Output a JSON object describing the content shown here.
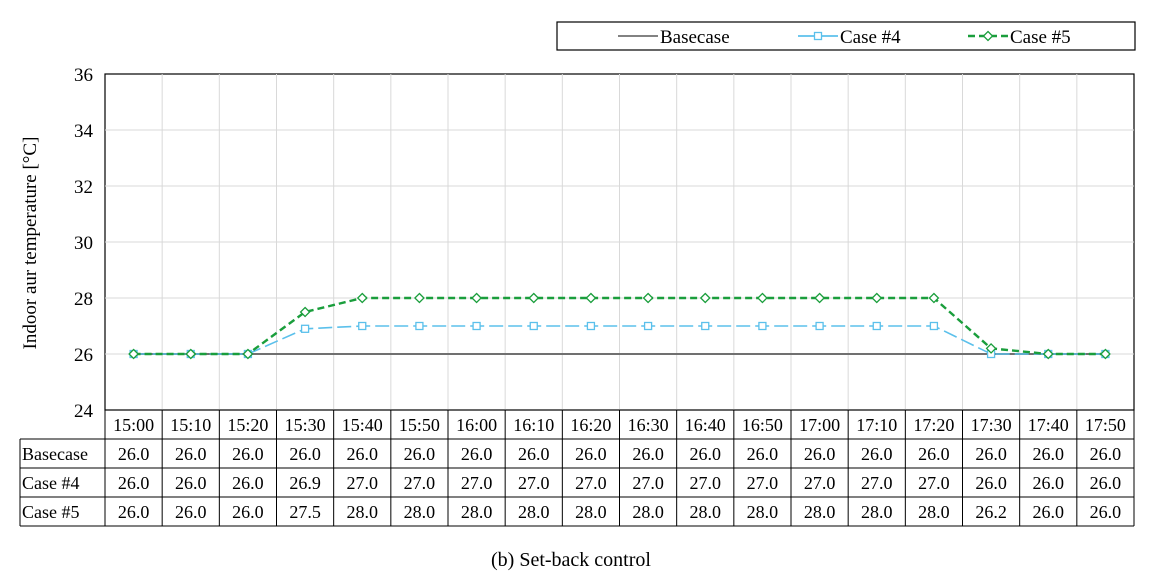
{
  "chart_data": {
    "type": "line",
    "caption": "(b)  Set-back  control",
    "ylabel": "Indoor aur temperature [°C]",
    "xlabel": "",
    "ylim": [
      24,
      36
    ],
    "yticks": [
      24,
      26,
      28,
      30,
      32,
      34,
      36
    ],
    "categories": [
      "15:00",
      "15:10",
      "15:20",
      "15:30",
      "15:40",
      "15:50",
      "16:00",
      "16:10",
      "16:20",
      "16:30",
      "16:40",
      "16:50",
      "17:00",
      "17:10",
      "17:20",
      "17:30",
      "17:40",
      "17:50"
    ],
    "grid": true,
    "legend_position": "top-right",
    "series": [
      {
        "name": "Basecase",
        "color": "#707070",
        "marker": "none",
        "dash": "solid",
        "values": [
          26.0,
          26.0,
          26.0,
          26.0,
          26.0,
          26.0,
          26.0,
          26.0,
          26.0,
          26.0,
          26.0,
          26.0,
          26.0,
          26.0,
          26.0,
          26.0,
          26.0,
          26.0
        ],
        "display": [
          "26.0",
          "26.0",
          "26.0",
          "26.0",
          "26.0",
          "26.0",
          "26.0",
          "26.0",
          "26.0",
          "26.0",
          "26.0",
          "26.0",
          "26.0",
          "26.0",
          "26.0",
          "26.0",
          "26.0",
          "26.0"
        ]
      },
      {
        "name": "Case #4",
        "color": "#5bc0eb",
        "marker": "square",
        "dash": "long-dash",
        "values": [
          26.0,
          26.0,
          26.0,
          26.9,
          27.0,
          27.0,
          27.0,
          27.0,
          27.0,
          27.0,
          27.0,
          27.0,
          27.0,
          27.0,
          27.0,
          26.0,
          26.0,
          26.0
        ],
        "display": [
          "26.0",
          "26.0",
          "26.0",
          "26.9",
          "27.0",
          "27.0",
          "27.0",
          "27.0",
          "27.0",
          "27.0",
          "27.0",
          "27.0",
          "27.0",
          "27.0",
          "27.0",
          "26.0",
          "26.0",
          "26.0"
        ]
      },
      {
        "name": "Case #5",
        "color": "#1a9e3c",
        "marker": "diamond",
        "dash": "dash",
        "values": [
          26.0,
          26.0,
          26.0,
          27.5,
          28.0,
          28.0,
          28.0,
          28.0,
          28.0,
          28.0,
          28.0,
          28.0,
          28.0,
          28.0,
          28.0,
          26.2,
          26.0,
          26.0
        ],
        "display": [
          "26.0",
          "26.0",
          "26.0",
          "27.5",
          "28.0",
          "28.0",
          "28.0",
          "28.0",
          "28.0",
          "28.0",
          "28.0",
          "28.0",
          "28.0",
          "28.0",
          "28.0",
          "26.2",
          "26.0",
          "26.0"
        ]
      }
    ]
  }
}
